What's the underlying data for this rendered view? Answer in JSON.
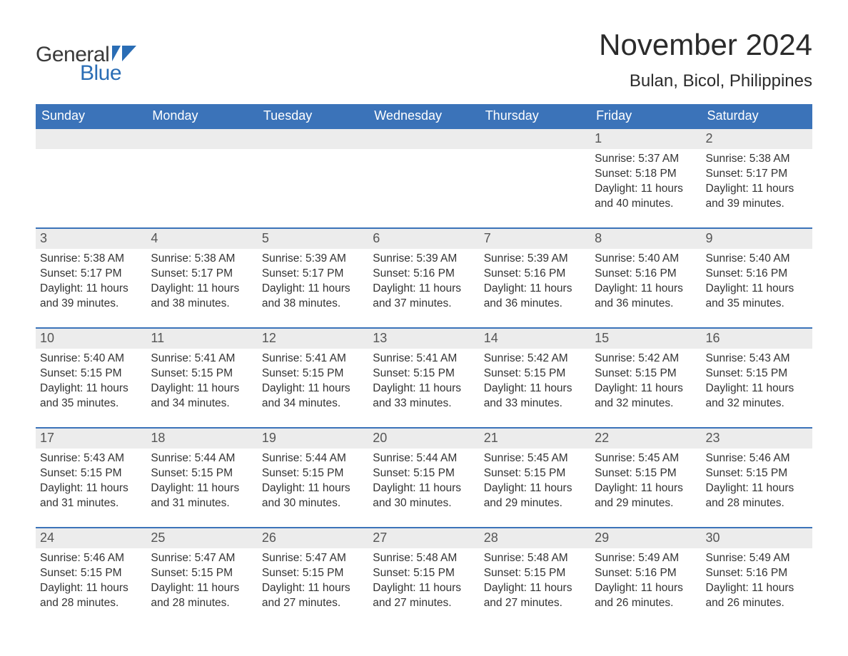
{
  "logo": {
    "word1": "General",
    "word2": "Blue",
    "flag_color": "#2a6db5"
  },
  "title": "November 2024",
  "location": "Bulan, Bicol, Philippines",
  "colors": {
    "header_bg": "#3b73b9",
    "header_text": "#ffffff",
    "daynum_bg": "#ececec",
    "daynum_text": "#555555",
    "row_border": "#3b73b9",
    "body_text": "#333333"
  },
  "day_headers": [
    "Sunday",
    "Monday",
    "Tuesday",
    "Wednesday",
    "Thursday",
    "Friday",
    "Saturday"
  ],
  "weeks": [
    [
      {
        "num": "",
        "lines": []
      },
      {
        "num": "",
        "lines": []
      },
      {
        "num": "",
        "lines": []
      },
      {
        "num": "",
        "lines": []
      },
      {
        "num": "",
        "lines": []
      },
      {
        "num": "1",
        "lines": [
          "Sunrise: 5:37 AM",
          "Sunset: 5:18 PM",
          "Daylight: 11 hours and 40 minutes."
        ]
      },
      {
        "num": "2",
        "lines": [
          "Sunrise: 5:38 AM",
          "Sunset: 5:17 PM",
          "Daylight: 11 hours and 39 minutes."
        ]
      }
    ],
    [
      {
        "num": "3",
        "lines": [
          "Sunrise: 5:38 AM",
          "Sunset: 5:17 PM",
          "Daylight: 11 hours and 39 minutes."
        ]
      },
      {
        "num": "4",
        "lines": [
          "Sunrise: 5:38 AM",
          "Sunset: 5:17 PM",
          "Daylight: 11 hours and 38 minutes."
        ]
      },
      {
        "num": "5",
        "lines": [
          "Sunrise: 5:39 AM",
          "Sunset: 5:17 PM",
          "Daylight: 11 hours and 38 minutes."
        ]
      },
      {
        "num": "6",
        "lines": [
          "Sunrise: 5:39 AM",
          "Sunset: 5:16 PM",
          "Daylight: 11 hours and 37 minutes."
        ]
      },
      {
        "num": "7",
        "lines": [
          "Sunrise: 5:39 AM",
          "Sunset: 5:16 PM",
          "Daylight: 11 hours and 36 minutes."
        ]
      },
      {
        "num": "8",
        "lines": [
          "Sunrise: 5:40 AM",
          "Sunset: 5:16 PM",
          "Daylight: 11 hours and 36 minutes."
        ]
      },
      {
        "num": "9",
        "lines": [
          "Sunrise: 5:40 AM",
          "Sunset: 5:16 PM",
          "Daylight: 11 hours and 35 minutes."
        ]
      }
    ],
    [
      {
        "num": "10",
        "lines": [
          "Sunrise: 5:40 AM",
          "Sunset: 5:15 PM",
          "Daylight: 11 hours and 35 minutes."
        ]
      },
      {
        "num": "11",
        "lines": [
          "Sunrise: 5:41 AM",
          "Sunset: 5:15 PM",
          "Daylight: 11 hours and 34 minutes."
        ]
      },
      {
        "num": "12",
        "lines": [
          "Sunrise: 5:41 AM",
          "Sunset: 5:15 PM",
          "Daylight: 11 hours and 34 minutes."
        ]
      },
      {
        "num": "13",
        "lines": [
          "Sunrise: 5:41 AM",
          "Sunset: 5:15 PM",
          "Daylight: 11 hours and 33 minutes."
        ]
      },
      {
        "num": "14",
        "lines": [
          "Sunrise: 5:42 AM",
          "Sunset: 5:15 PM",
          "Daylight: 11 hours and 33 minutes."
        ]
      },
      {
        "num": "15",
        "lines": [
          "Sunrise: 5:42 AM",
          "Sunset: 5:15 PM",
          "Daylight: 11 hours and 32 minutes."
        ]
      },
      {
        "num": "16",
        "lines": [
          "Sunrise: 5:43 AM",
          "Sunset: 5:15 PM",
          "Daylight: 11 hours and 32 minutes."
        ]
      }
    ],
    [
      {
        "num": "17",
        "lines": [
          "Sunrise: 5:43 AM",
          "Sunset: 5:15 PM",
          "Daylight: 11 hours and 31 minutes."
        ]
      },
      {
        "num": "18",
        "lines": [
          "Sunrise: 5:44 AM",
          "Sunset: 5:15 PM",
          "Daylight: 11 hours and 31 minutes."
        ]
      },
      {
        "num": "19",
        "lines": [
          "Sunrise: 5:44 AM",
          "Sunset: 5:15 PM",
          "Daylight: 11 hours and 30 minutes."
        ]
      },
      {
        "num": "20",
        "lines": [
          "Sunrise: 5:44 AM",
          "Sunset: 5:15 PM",
          "Daylight: 11 hours and 30 minutes."
        ]
      },
      {
        "num": "21",
        "lines": [
          "Sunrise: 5:45 AM",
          "Sunset: 5:15 PM",
          "Daylight: 11 hours and 29 minutes."
        ]
      },
      {
        "num": "22",
        "lines": [
          "Sunrise: 5:45 AM",
          "Sunset: 5:15 PM",
          "Daylight: 11 hours and 29 minutes."
        ]
      },
      {
        "num": "23",
        "lines": [
          "Sunrise: 5:46 AM",
          "Sunset: 5:15 PM",
          "Daylight: 11 hours and 28 minutes."
        ]
      }
    ],
    [
      {
        "num": "24",
        "lines": [
          "Sunrise: 5:46 AM",
          "Sunset: 5:15 PM",
          "Daylight: 11 hours and 28 minutes."
        ]
      },
      {
        "num": "25",
        "lines": [
          "Sunrise: 5:47 AM",
          "Sunset: 5:15 PM",
          "Daylight: 11 hours and 28 minutes."
        ]
      },
      {
        "num": "26",
        "lines": [
          "Sunrise: 5:47 AM",
          "Sunset: 5:15 PM",
          "Daylight: 11 hours and 27 minutes."
        ]
      },
      {
        "num": "27",
        "lines": [
          "Sunrise: 5:48 AM",
          "Sunset: 5:15 PM",
          "Daylight: 11 hours and 27 minutes."
        ]
      },
      {
        "num": "28",
        "lines": [
          "Sunrise: 5:48 AM",
          "Sunset: 5:15 PM",
          "Daylight: 11 hours and 27 minutes."
        ]
      },
      {
        "num": "29",
        "lines": [
          "Sunrise: 5:49 AM",
          "Sunset: 5:16 PM",
          "Daylight: 11 hours and 26 minutes."
        ]
      },
      {
        "num": "30",
        "lines": [
          "Sunrise: 5:49 AM",
          "Sunset: 5:16 PM",
          "Daylight: 11 hours and 26 minutes."
        ]
      }
    ]
  ]
}
